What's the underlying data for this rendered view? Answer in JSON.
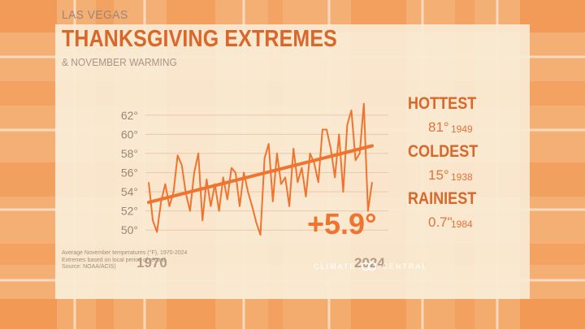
{
  "header": {
    "city": "LAS VEGAS",
    "title": "THANKSGIVING EXTREMES",
    "subtitle": "& NOVEMBER WARMING"
  },
  "stats": [
    {
      "label": "HOTTEST",
      "value": "81°",
      "year": "1949"
    },
    {
      "label": "COLDEST",
      "value": "15°",
      "year": "1938"
    },
    {
      "label": "RAINIEST",
      "value": "0.7\"",
      "year": "1984"
    }
  ],
  "trend_label": "+5.9°",
  "footnotes": [
    "Average November temperatures (°F), 1970-2024",
    "Extremes based on local period of record.",
    "Source: NOAA/ACIS)"
  ],
  "branding": {
    "left": "CLIMATE",
    "right": "CENTRAL"
  },
  "colors": {
    "accent": "#d9672a",
    "line": "#ee7430",
    "text_muted": "#9c8577",
    "panel": "#f9ead3",
    "plaid_orange": "#f08a3f",
    "plaid_cream": "#f8dcb5"
  },
  "chart_data": {
    "type": "line",
    "title": "THANKSGIVING EXTREMES",
    "xlabel": "",
    "ylabel": "",
    "x_tick_labels": [
      "1970",
      "2024"
    ],
    "y_ticks": [
      50,
      52,
      54,
      56,
      58,
      60,
      62
    ],
    "y_tick_labels": [
      "50°",
      "52°",
      "54°",
      "56°",
      "58°",
      "60°",
      "62°"
    ],
    "xlim": [
      1970,
      2024
    ],
    "ylim": [
      49,
      63
    ],
    "grid": "horizontal",
    "series": [
      {
        "name": "",
        "x": [
          1970,
          1971,
          1972,
          1973,
          1974,
          1975,
          1976,
          1977,
          1978,
          1979,
          1980,
          1981,
          1982,
          1983,
          1984,
          1985,
          1986,
          1987,
          1988,
          1989,
          1990,
          1991,
          1992,
          1993,
          1994,
          1995,
          1996,
          1997,
          1998,
          1999,
          2000,
          2001,
          2002,
          2003,
          2004,
          2005,
          2006,
          2007,
          2008,
          2009,
          2010,
          2011,
          2012,
          2013,
          2014,
          2015,
          2016,
          2017,
          2018,
          2019,
          2020,
          2021,
          2022,
          2023,
          2024
        ],
        "values": [
          55.0,
          51.0,
          49.8,
          53.0,
          54.8,
          52.5,
          54.0,
          57.8,
          56.8,
          53.8,
          52.0,
          56.0,
          58.0,
          51.0,
          55.3,
          52.5,
          54.8,
          52.0,
          55.5,
          53.2,
          56.5,
          56.0,
          52.5,
          56.0,
          54.0,
          52.5,
          50.8,
          49.5,
          57.5,
          59.0,
          53.0,
          58.0,
          54.8,
          55.5,
          52.5,
          58.5,
          55.0,
          56.5,
          53.5,
          58.0,
          57.0,
          55.0,
          60.5,
          60.5,
          58.5,
          55.5,
          60.0,
          54.0,
          61.0,
          62.5,
          57.3,
          58.0,
          63.2,
          52.0,
          55.0
        ]
      },
      {
        "name": "",
        "x": [
          1970,
          2024
        ],
        "values": [
          52.9,
          58.8
        ]
      }
    ]
  }
}
